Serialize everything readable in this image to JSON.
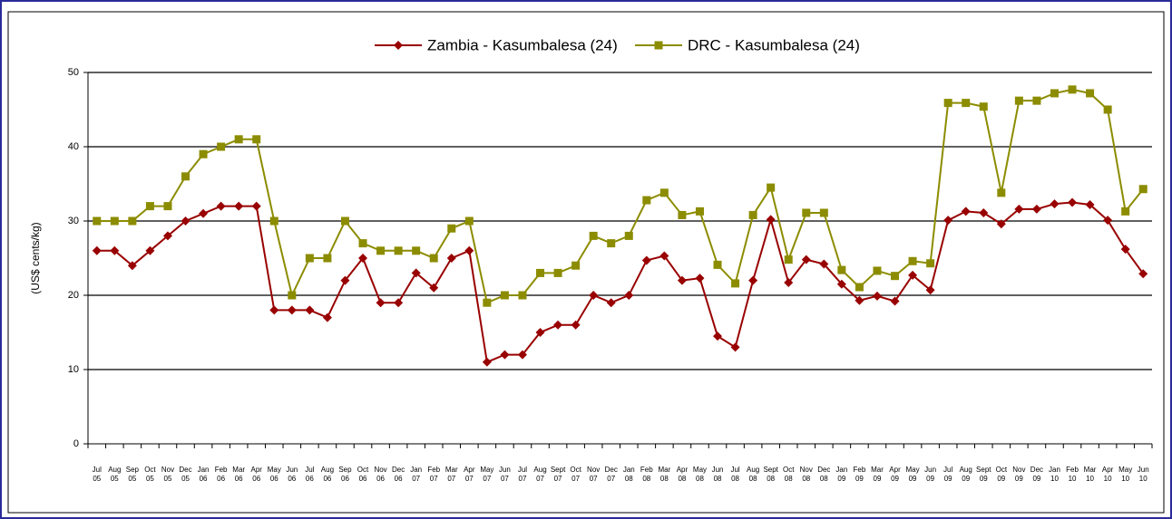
{
  "chart_data": {
    "type": "line",
    "y_label": "(US$ cents/kg)",
    "categories": [
      "Jul 05",
      "Aug 05",
      "Sep 05",
      "Oct 05",
      "Nov 05",
      "Dec 05",
      "Jan 06",
      "Feb 06",
      "Mar 06",
      "Apr 06",
      "May 06",
      "Jun 06",
      "Jul 06",
      "Aug 06",
      "Sep 06",
      "Oct 06",
      "Nov 06",
      "Dec 06",
      "Jan 07",
      "Feb 07",
      "Mar 07",
      "Apr 07",
      "May 07",
      "Jun 07",
      "Jul 07",
      "Aug 07",
      "Sept 07",
      "Oct 07",
      "Nov 07",
      "Dec 07",
      "Jan 08",
      "Feb 08",
      "Mar 08",
      "Apr 08",
      "May 08",
      "Jun 08",
      "Jul 08",
      "Aug 08",
      "Sept 08",
      "Oct 08",
      "Nov 08",
      "Dec 08",
      "Jan 09",
      "Feb 09",
      "Mar 09",
      "Apr 09",
      "May 09",
      "Jun 09",
      "Jul 09",
      "Aug 09",
      "Sept 09",
      "Oct 09",
      "Nov 09",
      "Dec 09",
      "Jan 10",
      "Feb 10",
      "Mar 10",
      "Apr 10",
      "May 10",
      "Jun 10"
    ],
    "series": [
      {
        "name": "Zambia - Kasumbalesa (24)",
        "color": "#990000",
        "marker": "diamond",
        "values": [
          26,
          26,
          24,
          26,
          28,
          30,
          31,
          32,
          32,
          32,
          18,
          18,
          18,
          17,
          22,
          25,
          19,
          19,
          23,
          21,
          25,
          26,
          11,
          12,
          12,
          15,
          16,
          16,
          20,
          19,
          20,
          24.7,
          25.3,
          22,
          22.3,
          14.5,
          13,
          22,
          30.2,
          21.7,
          24.8,
          24.2,
          21.5,
          19.3,
          19.9,
          19.2,
          22.7,
          20.7,
          30.1,
          31.3,
          31.1,
          29.6,
          31.6,
          31.6,
          32.3,
          32.5,
          32.2,
          30.1,
          26.2,
          22.9
        ]
      },
      {
        "name": "DRC - Kasumbalesa (24)",
        "color": "#8c8c00",
        "marker": "square",
        "values": [
          30,
          30,
          30,
          32,
          32,
          36,
          39,
          40,
          41,
          41,
          30,
          20,
          25,
          25,
          30,
          27,
          26,
          26,
          26,
          25,
          29,
          30,
          19,
          20,
          20,
          23,
          23,
          24,
          28,
          27,
          28,
          32.8,
          33.8,
          30.8,
          31.3,
          24.1,
          21.6,
          30.8,
          34.5,
          24.8,
          31.1,
          31.1,
          23.4,
          21.1,
          23.3,
          22.6,
          24.6,
          24.3,
          45.9,
          45.9,
          45.4,
          33.8,
          46.2,
          46.2,
          47.2,
          47.7,
          47.2,
          45,
          31.3,
          34.3
        ]
      }
    ],
    "ylim": [
      0,
      50
    ],
    "yticks": [
      0,
      10,
      20,
      30,
      40,
      50
    ],
    "grid": true,
    "legend": "top"
  }
}
